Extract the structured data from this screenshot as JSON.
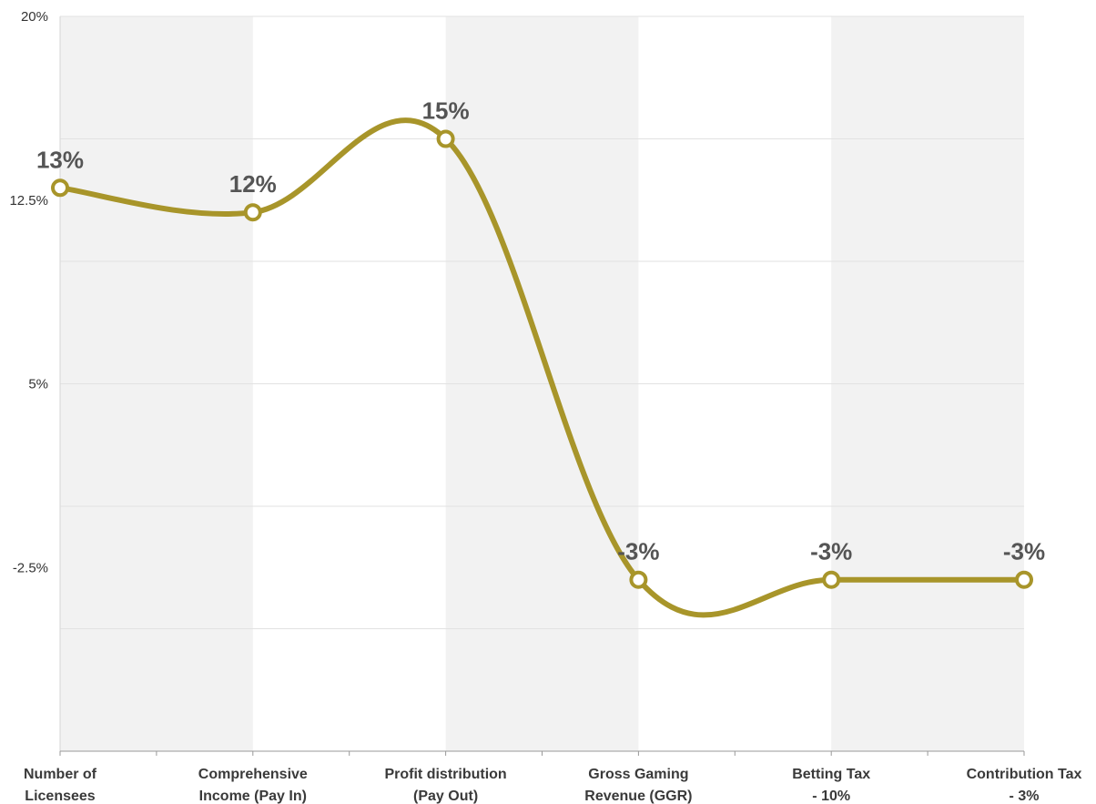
{
  "chart_data": {
    "type": "line",
    "categories": [
      [
        "Number of",
        "Licensees"
      ],
      [
        "Comprehensive",
        "Income (Pay In)"
      ],
      [
        "Profit distribution",
        "(Pay Out)"
      ],
      [
        "Gross Gaming",
        "Revenue (GGR)"
      ],
      [
        "Betting Tax",
        "- 10%"
      ],
      [
        "Contribution Tax",
        "- 3%"
      ]
    ],
    "values": [
      13,
      12,
      15,
      -3,
      -3,
      -3
    ],
    "data_labels": [
      "13%",
      "12%",
      "15%",
      "-3%",
      "-3%",
      "-3%"
    ],
    "y_ticks": [
      {
        "value": 20,
        "label": "20%"
      },
      {
        "value": 12.5,
        "label": "12.5%"
      },
      {
        "value": 5,
        "label": "5%"
      },
      {
        "value": -2.5,
        "label": "-2.5%"
      }
    ],
    "ylim": [
      -10,
      20
    ],
    "grid": true,
    "line_color": "#a8952a",
    "band_color": "#f2f2f2",
    "title": "",
    "xlabel": "",
    "ylabel": ""
  }
}
